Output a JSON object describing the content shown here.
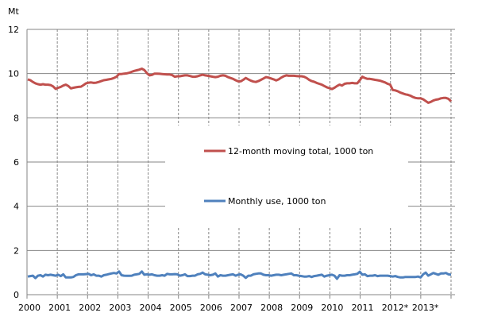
{
  "chart_data": {
    "type": "line",
    "title": "",
    "ylabel": "Mt",
    "xlabel": "",
    "ylim": [
      0,
      12
    ],
    "yticks": [
      "0",
      "2",
      "4",
      "6",
      "8",
      "10",
      "12"
    ],
    "xticks": [
      "2000",
      "2001",
      "2002",
      "2003",
      "2004",
      "2005",
      "2006",
      "2007",
      "2008",
      "2009",
      "2010",
      "2011",
      "2012*",
      "2013*"
    ],
    "x_range": [
      "2000-01",
      "2013-12"
    ],
    "frequency": "monthly",
    "grid": true,
    "legend_position": "center",
    "series": [
      {
        "name": "12-month moving total, 1000 ton",
        "color": "#C0504D",
        "values": [
          9.74,
          9.7,
          9.62,
          9.56,
          9.52,
          9.5,
          9.52,
          9.5,
          9.5,
          9.48,
          9.42,
          9.31,
          9.36,
          9.4,
          9.46,
          9.5,
          9.44,
          9.33,
          9.36,
          9.38,
          9.4,
          9.41,
          9.48,
          9.56,
          9.59,
          9.6,
          9.58,
          9.59,
          9.62,
          9.66,
          9.7,
          9.72,
          9.74,
          9.76,
          9.8,
          9.86,
          9.98,
          9.98,
          10.0,
          10.01,
          10.04,
          10.08,
          10.12,
          10.15,
          10.18,
          10.22,
          10.16,
          10.02,
          9.92,
          9.94,
          10.0,
          10.0,
          9.99,
          9.98,
          9.97,
          9.96,
          9.96,
          9.93,
          9.86,
          9.88,
          9.88,
          9.9,
          9.92,
          9.92,
          9.89,
          9.86,
          9.86,
          9.88,
          9.92,
          9.95,
          9.92,
          9.9,
          9.88,
          9.86,
          9.84,
          9.86,
          9.9,
          9.92,
          9.9,
          9.84,
          9.8,
          9.76,
          9.7,
          9.65,
          9.65,
          9.72,
          9.8,
          9.74,
          9.68,
          9.64,
          9.62,
          9.66,
          9.72,
          9.78,
          9.84,
          9.82,
          9.78,
          9.74,
          9.69,
          9.74,
          9.82,
          9.88,
          9.92,
          9.9,
          9.9,
          9.9,
          9.89,
          9.88,
          9.88,
          9.86,
          9.8,
          9.72,
          9.66,
          9.63,
          9.58,
          9.54,
          9.5,
          9.44,
          9.38,
          9.34,
          9.3,
          9.36,
          9.44,
          9.5,
          9.46,
          9.54,
          9.56,
          9.56,
          9.58,
          9.56,
          9.56,
          9.7,
          9.86,
          9.8,
          9.76,
          9.76,
          9.74,
          9.72,
          9.7,
          9.68,
          9.64,
          9.6,
          9.54,
          9.5,
          9.26,
          9.24,
          9.2,
          9.14,
          9.1,
          9.06,
          9.04,
          9.0,
          8.94,
          8.9,
          8.88,
          8.88,
          8.84,
          8.76,
          8.68,
          8.72,
          8.78,
          8.82,
          8.84,
          8.88,
          8.9,
          8.9,
          8.86,
          8.74
        ]
      },
      {
        "name": "Monthly use, 1000 ton",
        "color": "#4F81BD",
        "values": [
          0.82,
          0.84,
          0.86,
          0.75,
          0.86,
          0.88,
          0.82,
          0.9,
          0.88,
          0.9,
          0.88,
          0.86,
          0.9,
          0.84,
          0.92,
          0.78,
          0.78,
          0.78,
          0.8,
          0.88,
          0.92,
          0.92,
          0.92,
          0.93,
          0.94,
          0.88,
          0.92,
          0.86,
          0.86,
          0.82,
          0.88,
          0.9,
          0.93,
          0.96,
          0.98,
          0.96,
          1.05,
          0.88,
          0.86,
          0.85,
          0.85,
          0.86,
          0.9,
          0.92,
          0.94,
          1.05,
          0.9,
          0.92,
          0.9,
          0.92,
          0.88,
          0.86,
          0.86,
          0.88,
          0.86,
          0.94,
          0.92,
          0.92,
          0.93,
          0.92,
          0.86,
          0.88,
          0.92,
          0.84,
          0.84,
          0.86,
          0.86,
          0.92,
          0.94,
          1.0,
          0.92,
          0.9,
          0.88,
          0.9,
          0.96,
          0.82,
          0.88,
          0.86,
          0.86,
          0.88,
          0.9,
          0.92,
          0.86,
          0.9,
          0.92,
          0.86,
          0.76,
          0.86,
          0.86,
          0.92,
          0.94,
          0.96,
          0.96,
          0.9,
          0.88,
          0.88,
          0.86,
          0.88,
          0.9,
          0.9,
          0.88,
          0.9,
          0.92,
          0.94,
          0.96,
          0.88,
          0.88,
          0.86,
          0.84,
          0.82,
          0.82,
          0.84,
          0.8,
          0.84,
          0.86,
          0.88,
          0.9,
          0.82,
          0.86,
          0.88,
          0.9,
          0.86,
          0.72,
          0.88,
          0.86,
          0.86,
          0.88,
          0.88,
          0.9,
          0.92,
          0.94,
          1.04,
          0.9,
          0.92,
          0.84,
          0.86,
          0.86,
          0.88,
          0.84,
          0.86,
          0.86,
          0.86,
          0.86,
          0.84,
          0.82,
          0.84,
          0.8,
          0.78,
          0.78,
          0.8,
          0.8,
          0.8,
          0.8,
          0.8,
          0.82,
          0.78,
          0.92,
          1.0,
          0.86,
          0.92,
          0.98,
          0.94,
          0.9,
          0.96,
          0.96,
          0.98,
          0.92,
          0.9
        ]
      }
    ]
  }
}
